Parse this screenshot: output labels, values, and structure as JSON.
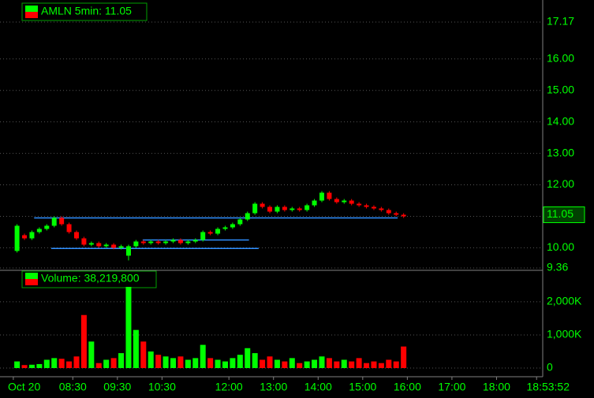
{
  "chart_data": [
    {
      "type": "candlestick",
      "title": "AMLN 5min: 11.05",
      "x": [
        435,
        445,
        455,
        465,
        475,
        485,
        495,
        505,
        515,
        525,
        535,
        545,
        555,
        565,
        575,
        585,
        595,
        605,
        615,
        625,
        635,
        645,
        655,
        665,
        675,
        685,
        695,
        705,
        715,
        725,
        735,
        745,
        755,
        765,
        775,
        785,
        795,
        805,
        815,
        825,
        835,
        845,
        855,
        865,
        875,
        885,
        895,
        905,
        915,
        925,
        935,
        945,
        955
      ],
      "open": [
        9.9,
        10.4,
        10.3,
        10.5,
        10.6,
        10.7,
        10.95,
        10.75,
        10.5,
        10.3,
        10.1,
        10.15,
        10.05,
        10.1,
        10.0,
        9.75,
        10.05,
        10.2,
        10.15,
        10.2,
        10.15,
        10.2,
        10.25,
        10.15,
        10.2,
        10.25,
        10.5,
        10.45,
        10.6,
        10.65,
        10.75,
        10.9,
        11.1,
        11.4,
        11.3,
        11.15,
        11.3,
        11.2,
        11.25,
        11.2,
        11.35,
        11.5,
        11.75,
        11.55,
        11.45,
        11.5,
        11.4,
        11.35,
        11.3,
        11.25,
        11.2,
        11.1,
        11.05
      ],
      "high": [
        10.75,
        10.45,
        10.55,
        10.65,
        10.75,
        11.0,
        11.0,
        10.8,
        10.55,
        10.35,
        10.2,
        10.2,
        10.15,
        10.15,
        10.1,
        10.1,
        10.25,
        10.25,
        10.25,
        10.25,
        10.25,
        10.3,
        10.3,
        10.25,
        10.3,
        10.55,
        10.55,
        10.65,
        10.7,
        10.8,
        10.95,
        11.15,
        11.45,
        11.45,
        11.35,
        11.35,
        11.35,
        11.3,
        11.3,
        11.4,
        11.55,
        11.8,
        11.8,
        11.6,
        11.55,
        11.55,
        11.45,
        11.4,
        11.35,
        11.3,
        11.25,
        11.15,
        11.1
      ],
      "low": [
        9.85,
        10.25,
        10.25,
        10.45,
        10.55,
        10.65,
        10.7,
        10.45,
        10.25,
        10.05,
        10.05,
        10.0,
        10.0,
        9.95,
        9.95,
        9.6,
        10.0,
        10.1,
        10.1,
        10.1,
        10.1,
        10.15,
        10.1,
        10.1,
        10.15,
        10.2,
        10.4,
        10.4,
        10.55,
        10.6,
        10.7,
        10.85,
        11.05,
        11.25,
        11.1,
        11.1,
        11.15,
        11.15,
        11.15,
        11.15,
        11.3,
        11.45,
        11.5,
        11.4,
        11.4,
        11.35,
        11.3,
        11.25,
        11.2,
        11.15,
        11.05,
        11.0,
        10.95
      ],
      "close": [
        10.7,
        10.3,
        10.5,
        10.6,
        10.7,
        10.95,
        10.75,
        10.5,
        10.3,
        10.1,
        10.15,
        10.05,
        10.1,
        10.0,
        10.05,
        10.05,
        10.2,
        10.15,
        10.2,
        10.15,
        10.2,
        10.25,
        10.15,
        10.2,
        10.25,
        10.5,
        10.45,
        10.6,
        10.65,
        10.75,
        10.9,
        11.1,
        11.4,
        11.3,
        11.15,
        11.3,
        11.2,
        11.25,
        11.2,
        11.35,
        11.5,
        11.75,
        11.55,
        11.45,
        11.5,
        11.4,
        11.35,
        11.3,
        11.25,
        11.2,
        11.1,
        11.05,
        11.0
      ],
      "up_color": "#00ff00",
      "down_color": "#ff0000",
      "last_value": 11.05,
      "levels": [
        {
          "value": 10.95,
          "x": [
            458,
            947
          ]
        },
        {
          "value": 10.25,
          "x": [
            604,
            747
          ]
        },
        {
          "value": 9.98,
          "x": [
            481,
            760
          ]
        }
      ],
      "level_color": "#2f8fff",
      "xlim": [
        428,
        1140
      ],
      "xticks": [
        {
          "value": 430,
          "label": "Oct 20"
        },
        {
          "value": 510,
          "label": "08:30"
        },
        {
          "value": 570,
          "label": "09:30"
        },
        {
          "value": 630,
          "label": "10:30"
        },
        {
          "value": 720,
          "label": "12:00"
        },
        {
          "value": 780,
          "label": "13:00"
        },
        {
          "value": 840,
          "label": "14:00"
        },
        {
          "value": 900,
          "label": "15:00"
        },
        {
          "value": 960,
          "label": "16:00"
        },
        {
          "value": 1020,
          "label": "17:00"
        },
        {
          "value": 1080,
          "label": "18:00"
        },
        {
          "value": 1133.87,
          "label": "18:53:52"
        }
      ],
      "ylim": [
        9.36,
        17.17
      ],
      "yticks": [
        9.36,
        {
          "value": 10,
          "label": "10.00"
        },
        {
          "value": 11,
          "label": "11.00"
        },
        {
          "value": 12,
          "label": "12.00"
        },
        {
          "value": 13,
          "label": "13.00"
        },
        {
          "value": 14,
          "label": "14.00"
        },
        {
          "value": 15,
          "label": "15.00"
        },
        {
          "value": 16,
          "label": "16.00"
        },
        17.17
      ],
      "grid": true
    },
    {
      "type": "bar",
      "title": "Volume: 38,219,800",
      "x": [
        435,
        445,
        455,
        465,
        475,
        485,
        495,
        505,
        515,
        525,
        535,
        545,
        555,
        565,
        575,
        585,
        595,
        605,
        615,
        625,
        635,
        645,
        655,
        665,
        675,
        685,
        695,
        705,
        715,
        725,
        735,
        745,
        755,
        765,
        775,
        785,
        795,
        805,
        815,
        825,
        835,
        845,
        855,
        865,
        875,
        885,
        895,
        905,
        915,
        925,
        935,
        945,
        955
      ],
      "values": [
        200,
        90,
        100,
        120,
        250,
        300,
        280,
        200,
        350,
        1600,
        800,
        150,
        250,
        300,
        450,
        2450,
        1150,
        800,
        500,
        400,
        350,
        300,
        350,
        250,
        300,
        700,
        300,
        250,
        200,
        300,
        400,
        600,
        450,
        250,
        350,
        250,
        200,
        300,
        150,
        200,
        250,
        350,
        300,
        200,
        250,
        200,
        300,
        150,
        200,
        150,
        250,
        200,
        650
      ],
      "ylim": [
        0,
        2830
      ],
      "yticks": [
        0,
        {
          "value": 1000,
          "label": "1,000K"
        },
        {
          "value": 2000,
          "label": "2,000K"
        }
      ],
      "grid": true
    }
  ]
}
